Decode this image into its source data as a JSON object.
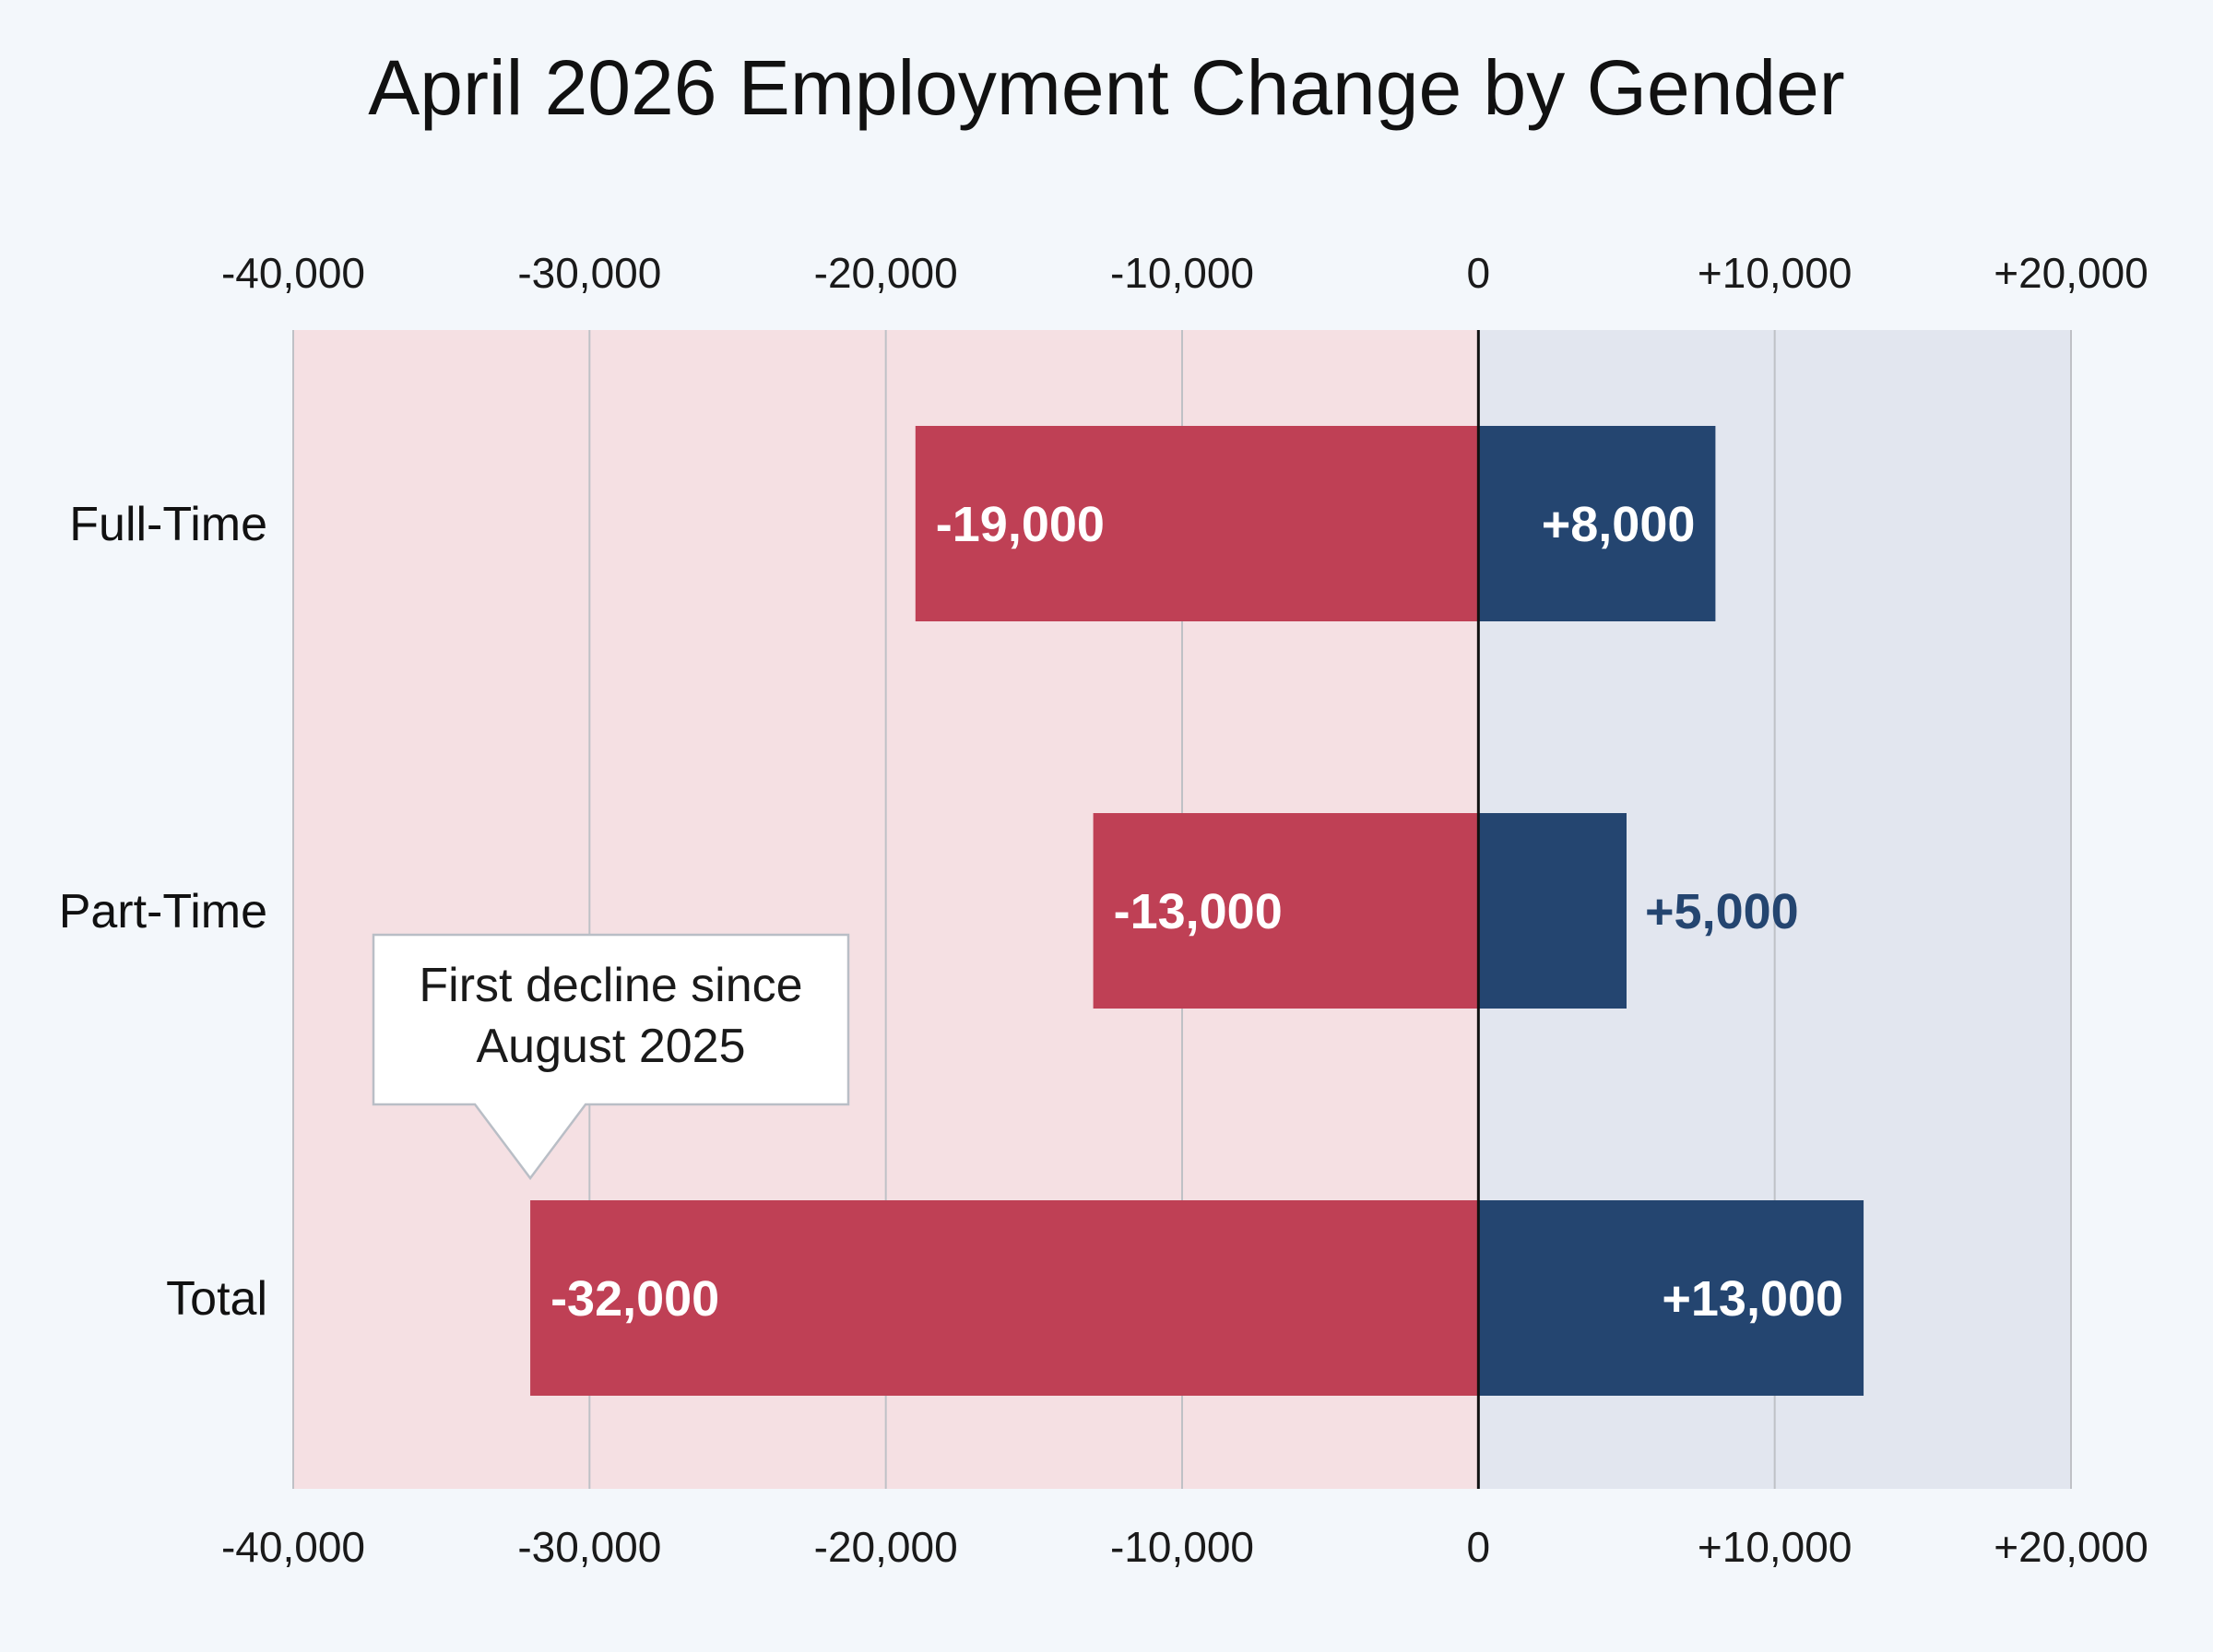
{
  "chart_data": {
    "type": "bar",
    "orientation": "horizontal",
    "stacking": "diverging",
    "title": "April 2026 Employment Change by Gender",
    "categories": [
      "Full-Time",
      "Part-Time",
      "Total"
    ],
    "series": [
      {
        "values": [
          -19000,
          -13000,
          -32000
        ],
        "labels": [
          "-19,000",
          "-13,000",
          "-32,000"
        ],
        "color": "#bf4055"
      },
      {
        "values": [
          8000,
          5000,
          13000
        ],
        "labels": [
          "+8,000",
          "+5,000",
          "+13,000"
        ],
        "color": "#244570"
      }
    ],
    "xlim": [
      -40000,
      20000
    ],
    "xticks": [
      -40000,
      -30000,
      -20000,
      -10000,
      0,
      10000,
      20000
    ],
    "xtick_labels": [
      "-40,000",
      "-30,000",
      "-20,000",
      "-10,000",
      "0",
      "+10,000",
      "+20,000"
    ],
    "tick_labels_top": true,
    "tick_labels_bottom": true,
    "grid": true,
    "background_colors": {
      "negative": "#f5e0e3",
      "positive": "#e2e6ef",
      "page": "#f3f7fb"
    },
    "annotations": [
      {
        "text_lines": [
          "First decline since",
          "August 2025"
        ],
        "target_category": "Total",
        "target_value": -32000
      }
    ]
  }
}
